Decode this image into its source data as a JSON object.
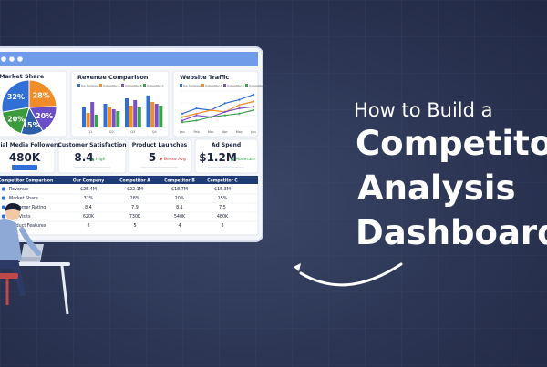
{
  "headline": {
    "line1": "How to Build a",
    "line2": "Competitor",
    "line3": "Analysis",
    "line4": "Dashboard"
  },
  "dashboard": {
    "market_share": {
      "title": "Market Share",
      "values": [
        32,
        28,
        20,
        15,
        20
      ],
      "value_labels": [
        "32%",
        "28%",
        "20%",
        "15%",
        "20%"
      ],
      "colors": [
        "#2f6fd6",
        "#f28c28",
        "#6b4fc8",
        "#2d5fa8",
        "#3a9a3c"
      ]
    },
    "revenue": {
      "title": "Revenue Comparison",
      "categories": [
        "Q1",
        "Q2",
        "Q3",
        "Q4"
      ],
      "series": [
        {
          "name": "Our Company",
          "color": "#2f6fd6",
          "values": [
            55,
            65,
            80,
            88
          ]
        },
        {
          "name": "Competitor A",
          "color": "#f28c28",
          "values": [
            40,
            55,
            60,
            70
          ]
        },
        {
          "name": "Competitor B",
          "color": "#7a4fc8",
          "values": [
            70,
            50,
            75,
            65
          ]
        },
        {
          "name": "Competitor C",
          "color": "#3aa24a",
          "values": [
            35,
            45,
            55,
            60
          ]
        }
      ]
    },
    "traffic": {
      "title": "Website Traffic",
      "categories": [
        "Jan",
        "Feb",
        "Mar",
        "Apr",
        "May",
        "Jun"
      ],
      "series": [
        {
          "name": "Our Company",
          "color": "#2f6fd6",
          "values": [
            40,
            55,
            50,
            70,
            80,
            95
          ]
        },
        {
          "name": "Competitor A",
          "color": "#f28c28",
          "values": [
            30,
            40,
            50,
            45,
            65,
            75
          ]
        },
        {
          "name": "Competitor B",
          "color": "#7a4fc8",
          "values": [
            20,
            35,
            30,
            45,
            55,
            60
          ]
        },
        {
          "name": "Competitor C",
          "color": "#3aa24a",
          "values": [
            15,
            20,
            30,
            35,
            40,
            50
          ]
        }
      ]
    },
    "kpis": [
      {
        "label": "Social Media Followers",
        "value": "480K"
      },
      {
        "label": "Customer Satisfaction",
        "value": "8.4",
        "note": "▲ High"
      },
      {
        "label": "Product Launches",
        "value": "5",
        "note": "▼ Below Avg"
      },
      {
        "label": "Ad Spend",
        "value": "$1.2M",
        "note": "▲ Moderate"
      }
    ],
    "table": {
      "header": [
        "Competitor Comparison",
        "Our Company",
        "Competitor A",
        "Competitor B",
        "Competitor C"
      ],
      "rows": [
        [
          "Revenue",
          "$25.4M",
          "$22.1M",
          "$18.7M",
          "$15.3M"
        ],
        [
          "Market Share",
          "32%",
          "28%",
          "20%",
          "15%"
        ],
        [
          "Customer Rating",
          "8.4",
          "7.9",
          "8.1",
          "7.5"
        ],
        [
          "Site Visits",
          "620K",
          "730K",
          "540K",
          "480K"
        ],
        [
          "Product Features",
          "8",
          "5",
          "4",
          "3"
        ]
      ]
    }
  }
}
